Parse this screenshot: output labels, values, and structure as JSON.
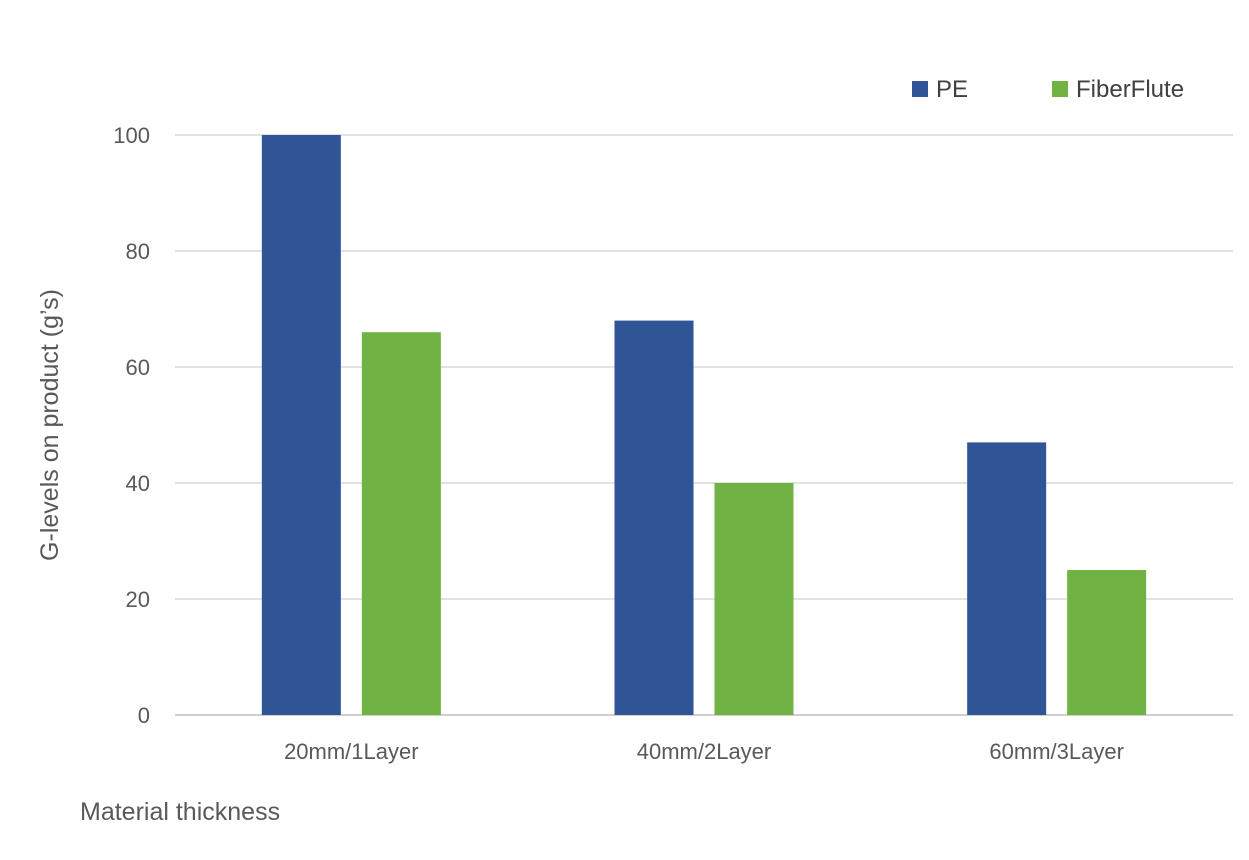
{
  "chart_data": {
    "type": "bar",
    "title": "",
    "xlabel": "Material thickness",
    "ylabel": "G-levels on product (g’s)",
    "categories": [
      "20mm/1Layer",
      "40mm/2Layer",
      "60mm/3Layer"
    ],
    "series": [
      {
        "name": "PE",
        "color": "#2f5597",
        "values": [
          100,
          68,
          47
        ]
      },
      {
        "name": "FiberFlute",
        "color": "#70b244",
        "values": [
          66,
          40,
          25
        ]
      }
    ],
    "ylim": [
      0,
      100
    ],
    "yticks": [
      "0",
      "20",
      "40",
      "60",
      "80",
      "100"
    ],
    "grid": true,
    "legend_position": "top-right"
  }
}
